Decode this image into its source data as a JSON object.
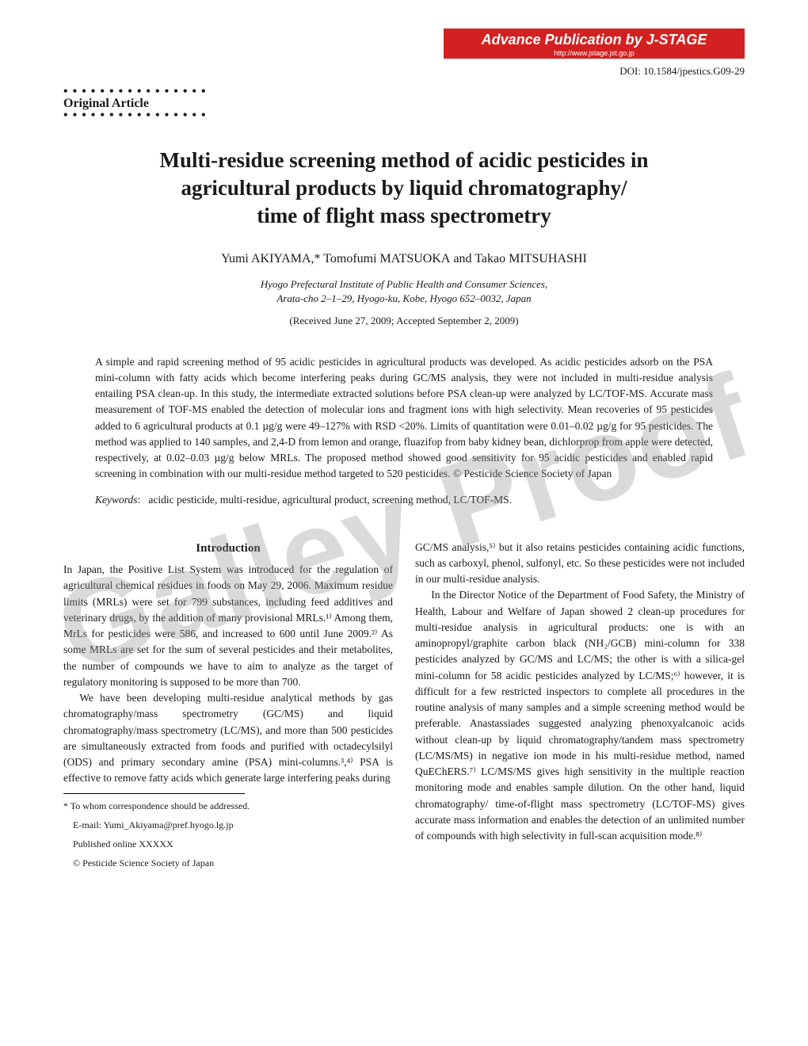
{
  "banner": {
    "title": "Advance Publication by J-STAGE",
    "url": "http://www.jstage.jst.go.jp",
    "bg_color": "#d32020",
    "text_color": "#ffffff"
  },
  "doi": "DOI: 10.1584/jpestics.G09-29",
  "article_type": "Original Article",
  "title_lines": [
    "Multi-residue screening method of acidic pesticides in",
    "agricultural products by liquid chromatography/",
    "time of flight mass spectrometry"
  ],
  "authors_html": "Yumi A<small>KIYAMA</small>,* Tomofumi M<small>ATSUOKA</small> and Takao M<small>ITSUHASHI</small>",
  "affiliation": [
    "Hyogo Prefectural Institute of Public Health and Consumer Sciences,",
    "Arata-cho 2–1–29, Hyogo-ku, Kobe, Hyogo 652–0032, Japan"
  ],
  "dates": "(Received June 27, 2009; Accepted September 2, 2009)",
  "abstract": "A simple and rapid screening method of 95 acidic pesticides in agricultural products was developed. As acidic pesticides adsorb on the PSA mini-column with fatty acids which become interfering peaks during GC/MS analysis, they were not included in multi-residue analysis entailing PSA clean-up. In this study, the intermediate extracted solutions before PSA clean-up were analyzed by LC/TOF-MS. Accurate mass measurement of TOF-MS enabled the detection of molecular ions and fragment ions with high selectivity. Mean recoveries of 95 pesticides added to 6 agricultural products at 0.1 µg/g were 49–127% with RSD <20%. Limits of quantitation were 0.01–0.02 µg/g for 95 pesticides. The method was applied to 140 samples, and 2,4-D from lemon and orange, fluazifop from baby kidney bean, dichlorprop from apple were detected, respectively, at 0.02–0.03 µg/g below MRLs. The proposed method showed good sensitivity for 95 acidic pesticides and enabled rapid screening in combination with our multi-residue method targeted to 520 pesticides.   © Pesticide Science Society of Japan",
  "keywords_label": "Keywords",
  "keywords": "acidic pesticide, multi-residue, agricultural product, screening method, LC/TOF-MS.",
  "intro_heading": "Introduction",
  "col_left_p1": "In Japan, the Positive List System was introduced for the regulation of agricultural chemical residues in foods on May 29, 2006. Maximum residue limits (MRLs) were set for 799 substances, including feed additives and veterinary drugs, by the addition of many provisional MRLs.¹⁾ Among them, MrLs for pesticides were 586, and increased to 600 until June 2009.²⁾ As some MRLs are set for the sum of several pesticides and their metabolites, the number of compounds we have to aim to analyze as the target of regulatory monitoring is supposed to be more than 700.",
  "col_left_p2": "We have been developing multi-residue analytical methods by gas chromatography/mass spectrometry (GC/MS) and liquid chromatography/mass spectrometry (LC/MS), and more than 500 pesticides are simultaneously extracted from foods and purified with octadecylsilyl (ODS) and primary secondary amine (PSA) mini-columns.³,⁴⁾ PSA is effective to remove fatty acids which generate large interfering peaks during",
  "col_right_p1": "GC/MS analysis,⁵⁾ but it also retains pesticides containing acidic functions, such as carboxyl, phenol, sulfonyl, etc. So these pesticides were not included in our multi-residue analysis.",
  "col_right_p2": "In the Director Notice of the Department of Food Safety, the Ministry of Health, Labour and Welfare of Japan showed 2 clean-up procedures for multi-residue analysis in agricultural products: one is with an aminopropyl/graphite carbon black (NH₂/GCB) mini-column for 338 pesticides analyzed by GC/MS and LC/MS; the other is with a silica-gel mini-column for 58 acidic pesticides analyzed by LC/MS;⁶⁾ however, it is difficult for a few restricted inspectors to complete all procedures in the routine analysis of many samples and a simple screening method would be preferable. Anastassiades suggested analyzing phenoxyalcanoic acids without clean-up by liquid chromatography/tandem mass spectrometry (LC/MS/MS) in negative ion mode in his multi-residue method, named QuEChERS.⁷⁾ LC/MS/MS gives high sensitivity in the multiple reaction monitoring mode and enables sample dilution. On the other hand, liquid chromatography/ time-of-flight mass spectrometry (LC/TOF-MS) gives accurate mass information and enables the detection of an unlimited number of compounds with high selectivity in full-scan acquisition mode.⁸⁾",
  "footnotes": {
    "corresp": "* To whom correspondence should be addressed.",
    "email": "E-mail: Yumi_Akiyama@pref.hyogo.lg.jp",
    "pub": "Published online XXXXX",
    "copy": "© Pesticide Science Society of Japan"
  },
  "watermark": "Galley Proof",
  "watermark_color": "rgba(150,150,150,0.35)"
}
